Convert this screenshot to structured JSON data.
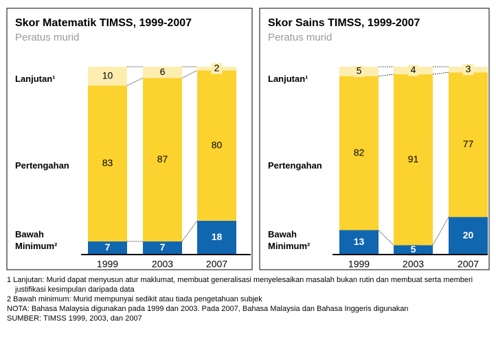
{
  "chart_data": [
    {
      "type": "stacked_bar",
      "title": "Skor Matematik TIMSS, 1999-2007",
      "subtitle": "Peratus murid",
      "categories": [
        "1999",
        "2003",
        "2007"
      ],
      "ylim": [
        0,
        100
      ],
      "series": [
        {
          "name": "Bawah Minimum²",
          "color": "#1166b0",
          "values": [
            7,
            7,
            18
          ]
        },
        {
          "name": "Pertengahan",
          "color": "#fcd22e",
          "values": [
            83,
            87,
            80
          ]
        },
        {
          "name": "Lanjutan¹",
          "color": "#fdeeb0",
          "values": [
            10,
            6,
            2
          ]
        }
      ]
    },
    {
      "type": "stacked_bar",
      "title": "Skor Sains TIMSS, 1999-2007",
      "subtitle": "Peratus murid",
      "categories": [
        "1999",
        "2003",
        "2007"
      ],
      "ylim": [
        0,
        100
      ],
      "series": [
        {
          "name": "Bawah Minimum²",
          "color": "#1166b0",
          "values": [
            13,
            5,
            20
          ]
        },
        {
          "name": "Pertengahan",
          "color": "#fcd22e",
          "values": [
            82,
            91,
            77
          ]
        },
        {
          "name": "Lanjutan¹",
          "color": "#fdeeb0",
          "values": [
            5,
            4,
            3
          ]
        }
      ]
    }
  ],
  "footnotes": [
    "1 Lanjutan: Murid dapat menyusun atur maklumat, membuat generalisasi menyelesaikan masalah bukan rutin dan membuat serta memberi justifikasi kesimpulan daripada data",
    "2 Bawah minimum: Murid mempunyai sedikit atau tiada pengetahuan subjek",
    "NOTA: Bahasa Malaysia digunakan pada 1999 dan 2003. Pada  2007, Bahasa Malaysia dan Bahasa Inggeris digunakan",
    "SUMBER: TIMSS 1999, 2003, dan 2007"
  ]
}
